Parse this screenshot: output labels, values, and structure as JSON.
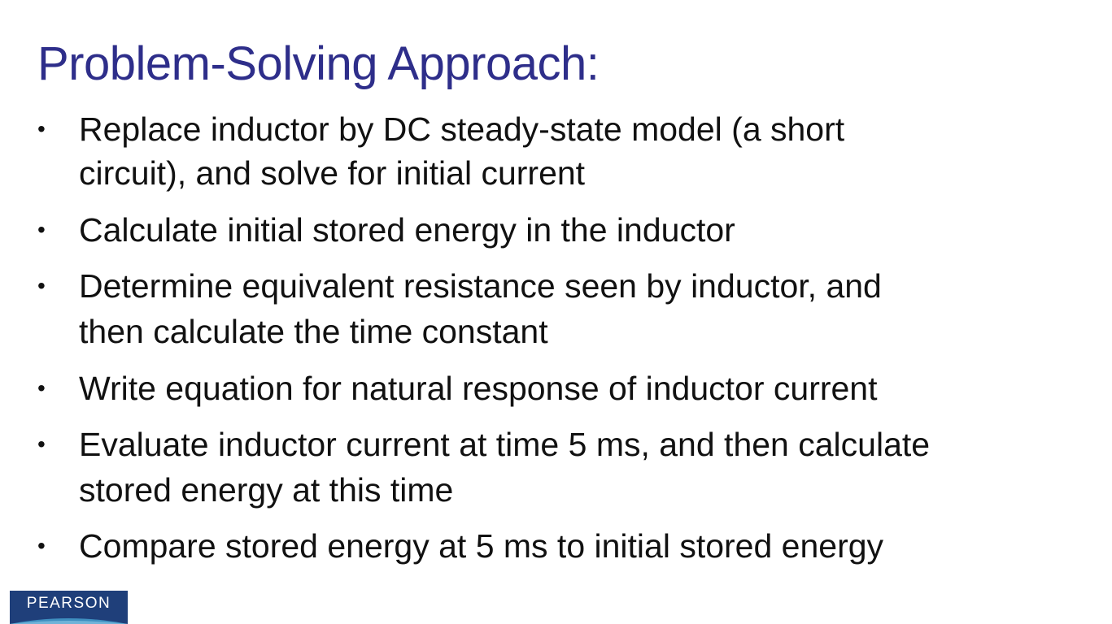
{
  "slide": {
    "title": "Problem-Solving Approach:",
    "bullet_symbol": "•",
    "bullets": [
      {
        "lines": [
          "Replace inductor by DC steady-state model (a short",
          "circuit), and solve for initial current"
        ]
      },
      {
        "lines": [
          "Calculate initial stored energy in the inductor"
        ]
      },
      {
        "lines": [
          "Determine equivalent resistance seen by inductor, and",
          "then calculate the time constant"
        ]
      },
      {
        "lines": [
          "Write equation for natural response of inductor current"
        ]
      },
      {
        "lines": [
          "Evaluate inductor current at time 5 ms, and then calculate",
          "stored energy at this time"
        ]
      },
      {
        "lines": [
          "Compare stored energy at 5 ms to initial stored energy"
        ]
      }
    ]
  },
  "logo": {
    "text": "PEARSON"
  },
  "colors": {
    "title": "#2e2e8a",
    "body_text": "#111111",
    "background": "#ffffff",
    "logo_background": "#1f3f7a"
  }
}
